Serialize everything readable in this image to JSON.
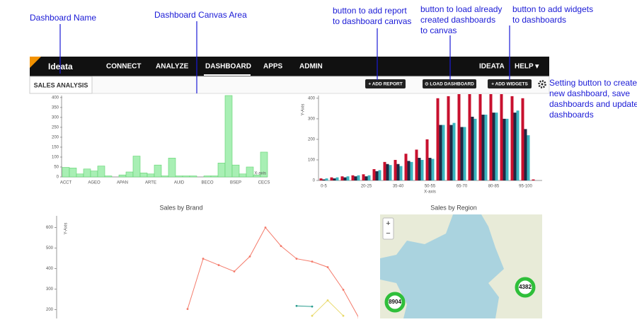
{
  "annotations": [
    {
      "lines": [
        "Dashboard Name"
      ]
    },
    {
      "lines": [
        "Dashboard Canvas Area"
      ]
    },
    {
      "lines": [
        "button to add report",
        "to dashboard canvas"
      ]
    },
    {
      "lines": [
        "button to load already",
        "created dashboards",
        "to canvas"
      ]
    },
    {
      "lines": [
        "button to add widgets",
        "to dashboards"
      ]
    },
    {
      "lines": [
        "Setting button to create",
        "new dashboard, save",
        "dashboards and update",
        "dashboards"
      ]
    }
  ],
  "navbar": {
    "logo": "Ideata",
    "menu": [
      "CONNECT",
      "ANALYZE",
      "DASHBOARD",
      "APPS",
      "ADMIN"
    ],
    "right": [
      "IDEATA",
      "HELP ▾"
    ]
  },
  "tab": "SALES ANALYSIS",
  "buttons": [
    "+ ADD REPORT",
    "⊙ LOAD DASHBOARD",
    "+ ADD WIDGETS"
  ],
  "chart_data": [
    {
      "type": "bar",
      "x_label": "X-axis",
      "categories": [
        "ACCT",
        null,
        null,
        null,
        "AGEO",
        null,
        null,
        null,
        "APAN",
        null,
        null,
        null,
        "ARTE",
        null,
        null,
        null,
        "AUID",
        null,
        null,
        null,
        "BECO",
        null,
        null,
        null,
        "BSEP",
        null,
        null,
        null,
        "CECS"
      ],
      "values": [
        48,
        45,
        15,
        40,
        30,
        55,
        5,
        0,
        10,
        25,
        105,
        20,
        15,
        60,
        5,
        95,
        5,
        5,
        5,
        0,
        5,
        5,
        70,
        410,
        60,
        15,
        50,
        10,
        125
      ],
      "color": "#a8efb4",
      "ylim": [
        0,
        410
      ],
      "yticks": [
        0,
        50,
        100,
        150,
        200,
        250,
        300,
        350,
        400
      ]
    },
    {
      "type": "grouped_bar",
      "y_label": "Y-Axis",
      "x_label": "X-axis",
      "categories": [
        "0-5",
        null,
        null,
        null,
        "20-25",
        null,
        null,
        "35-40",
        null,
        null,
        "50-55",
        null,
        null,
        "65-70",
        null,
        null,
        "80-85",
        null,
        null,
        "95-100",
        null
      ],
      "series": [
        {
          "color": "#c8102e",
          "values": [
            10,
            15,
            20,
            25,
            30,
            55,
            90,
            100,
            130,
            150,
            200,
            400,
            410,
            420,
            420,
            420,
            420,
            420,
            410,
            400,
            5
          ]
        },
        {
          "color": "#1f2a44",
          "values": [
            5,
            10,
            15,
            20,
            20,
            45,
            80,
            80,
            95,
            110,
            110,
            270,
            270,
            260,
            310,
            320,
            330,
            300,
            330,
            250,
            0
          ]
        },
        {
          "color": "#3bb5bf",
          "values": [
            10,
            15,
            20,
            25,
            25,
            50,
            75,
            70,
            90,
            100,
            105,
            270,
            280,
            260,
            300,
            320,
            330,
            300,
            340,
            220,
            0
          ]
        }
      ],
      "ylim": [
        0,
        420
      ],
      "yticks": [
        0,
        100,
        200,
        300,
        400
      ]
    },
    {
      "type": "line",
      "title": "Sales by Brand",
      "y_label": "Y-Axis",
      "series": [
        {
          "color": "#f47b6b",
          "values": [
            null,
            null,
            null,
            null,
            null,
            null,
            null,
            null,
            203,
            448,
            417,
            386,
            459,
            600,
            510,
            448,
            434,
            407,
            297,
            160
          ]
        },
        {
          "color": "#2a9d8f",
          "values": [
            null,
            null,
            null,
            null,
            null,
            null,
            null,
            null,
            null,
            null,
            null,
            null,
            null,
            null,
            null,
            218,
            215,
            null,
            null,
            null
          ]
        },
        {
          "color": "#e9d96a",
          "values": [
            null,
            null,
            null,
            null,
            null,
            null,
            null,
            null,
            null,
            null,
            null,
            null,
            null,
            null,
            null,
            null,
            170,
            245,
            170,
            null
          ]
        }
      ],
      "ylim": [
        150,
        650
      ],
      "yticks": [
        200,
        300,
        400,
        500,
        600
      ]
    }
  ],
  "map": {
    "title": "Sales by Region",
    "zoom": [
      "+",
      "−"
    ],
    "clusters": [
      "8904",
      "4382"
    ]
  }
}
